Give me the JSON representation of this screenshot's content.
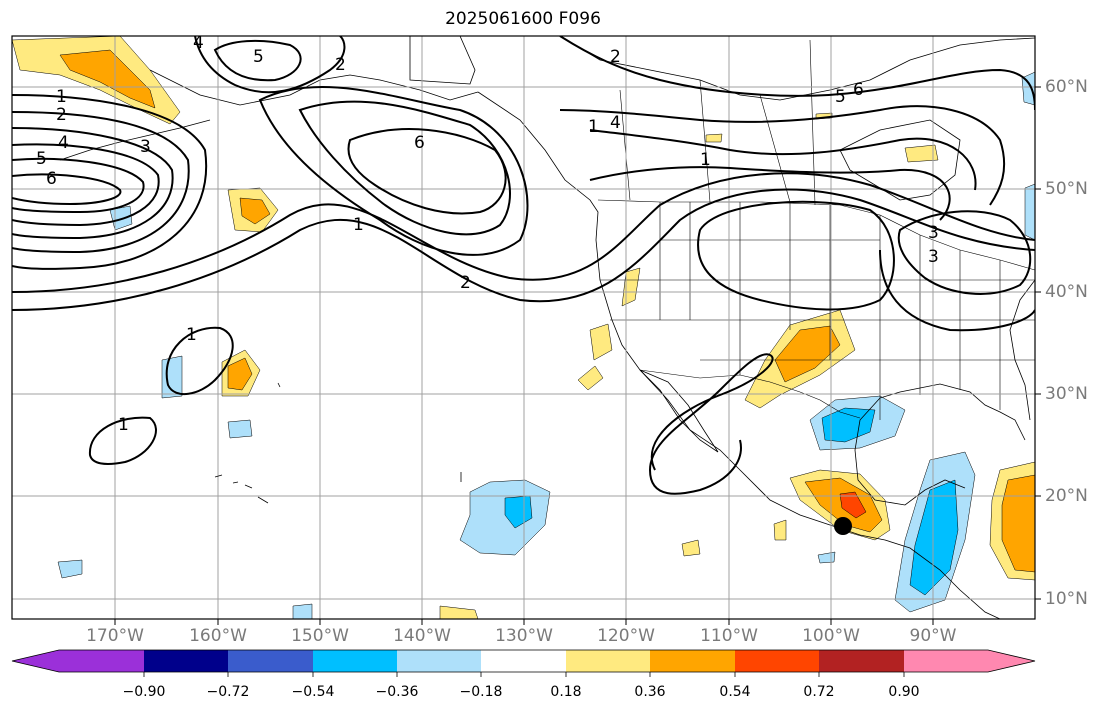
{
  "title": "2025061600 F096",
  "map": {
    "longitude_labels": [
      "170°W",
      "160°W",
      "150°W",
      "140°W",
      "130°W",
      "120°W",
      "110°W",
      "100°W",
      "90°W"
    ],
    "latitude_labels": [
      "60°N",
      "50°N",
      "40°N",
      "30°N",
      "20°N",
      "10°N"
    ],
    "contour_labels": [
      "1",
      "2",
      "4",
      "5",
      "6",
      "3",
      "1",
      "2",
      "6",
      "5",
      "4",
      "2",
      "6",
      "5",
      "4",
      "3",
      "1",
      "1",
      "1",
      "2",
      "1",
      "3"
    ],
    "marker": "black-dot",
    "grid": true
  },
  "colorbar": {
    "tick_labels": [
      "−0.90",
      "−0.72",
      "−0.54",
      "−0.36",
      "−0.18",
      "0.18",
      "0.36",
      "0.54",
      "0.72",
      "0.90"
    ],
    "colors": [
      "#9b30d9",
      "#00008b",
      "#3a5ccc",
      "#00bfff",
      "#aee0fa",
      "#ffffff",
      "#ffea80",
      "#ffa500",
      "#ff4500",
      "#b22222",
      "#ff88b0"
    ]
  }
}
